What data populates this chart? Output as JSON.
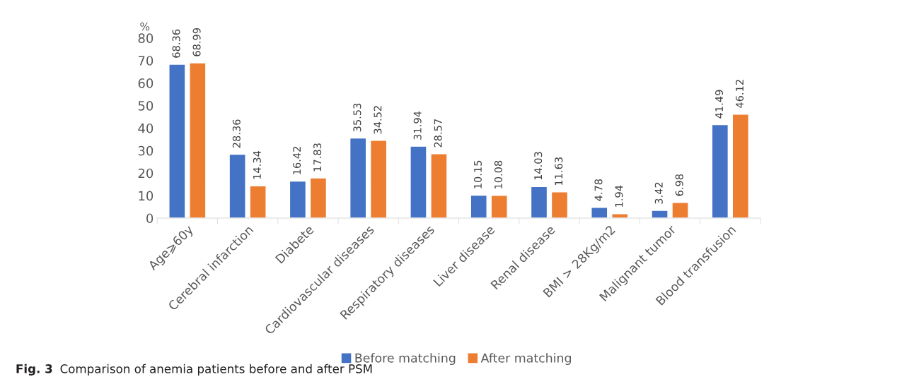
{
  "chart_data": {
    "type": "bar",
    "categories": [
      "Age⩾60y",
      "Cerebral infarction",
      "Diabete",
      "Cardiovascular diseases",
      "Respiratory diseases",
      "Liver disease",
      "Renal disease",
      "BMI > 28Kg/m2",
      "Malignant tumor",
      "Blood transfusion"
    ],
    "series": [
      {
        "name": "Before matching",
        "color": "#4472c4",
        "values": [
          68.36,
          28.36,
          16.42,
          35.53,
          31.94,
          10.15,
          14.03,
          4.78,
          3.42,
          41.49
        ]
      },
      {
        "name": "After matching",
        "color": "#ed7d31",
        "values": [
          68.99,
          14.34,
          17.83,
          34.52,
          28.57,
          10.08,
          11.63,
          1.94,
          6.98,
          46.12
        ]
      }
    ],
    "ylabel": "%",
    "ylim": [
      0,
      80
    ],
    "yticks": [
      0,
      10,
      20,
      30,
      40,
      50,
      60,
      70,
      80
    ],
    "data_labels": true,
    "legend": "bottom",
    "grid": false,
    "annotations": [
      "Fig. 3",
      "Comparison of anemia patients before and after PSM"
    ]
  }
}
